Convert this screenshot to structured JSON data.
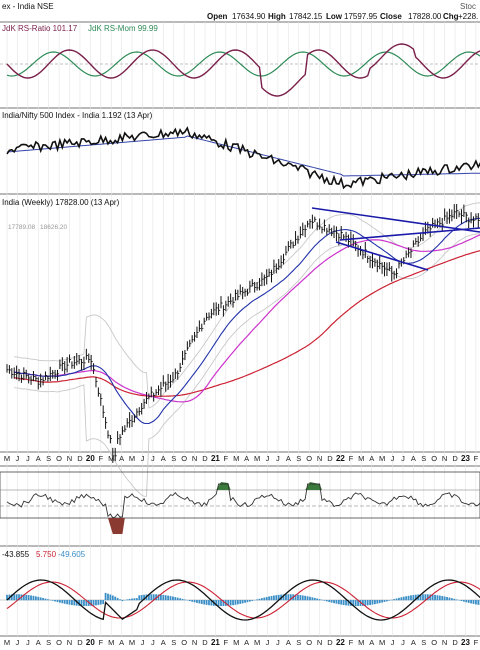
{
  "header": {
    "ticker_title": "ex - India NSE",
    "ohlc": {
      "open_label": "Open",
      "open_value": "17634.90",
      "high_label": "High",
      "high_value": "17842.15",
      "low_label": "Low",
      "low_value": "17597.95",
      "close_label": "Close",
      "close_value": "17828.00",
      "chg_label": "Chg",
      "chg_value": "+228."
    },
    "brand": "Stoc"
  },
  "panels": {
    "rrg": {
      "label_ratio": "JdK RS-Ratio 101.17",
      "label_mom": "JdK RS-Mom 99.99"
    },
    "relative": {
      "label": "India/Nifty 500 Index - India 1.192 (13 Apr)"
    },
    "price": {
      "label": "India (Weekly) 17828.00 (13 Apr)",
      "bb_label_a": "17789.08",
      "bb_label_b": "18626.20"
    },
    "macd": {
      "label_a": "-43.855",
      "label_b": "5.750",
      "label_c": "-49.605"
    }
  },
  "colors": {
    "rs_ratio": "#7a1f4a",
    "rs_mom": "#2e8b57",
    "rs_line": "#111111",
    "rs_ma": "#3344aa",
    "price_bar": "#111111",
    "ma_blue": "#2233aa",
    "ma_magenta": "#cc33cc",
    "ma_red": "#cc2233",
    "bb": "#c8c8c8",
    "trend": "#1a1aaa",
    "green_fill": "#3a7a3a",
    "red_fill": "#8a3a30",
    "hist": "#3b8fc7",
    "macd": "#111111",
    "signal": "#cc2233"
  },
  "chart_data": {
    "type": "line",
    "x_axis_ticks": [
      "M",
      "J",
      "J",
      "A",
      "S",
      "O",
      "N",
      "D",
      "20",
      "F",
      "M",
      "A",
      "M",
      "J",
      "J",
      "A",
      "S",
      "O",
      "N",
      "D",
      "21",
      "F",
      "M",
      "A",
      "M",
      "J",
      "J",
      "A",
      "S",
      "O",
      "N",
      "D",
      "22",
      "F",
      "M",
      "A",
      "M",
      "J",
      "J",
      "A",
      "S",
      "O",
      "N",
      "D",
      "23",
      "F"
    ],
    "bold_ticks": [
      "20",
      "21",
      "22",
      "23"
    ],
    "price_series_weekly_close_approx": [
      {
        "x": "2019-05",
        "y": 11500
      },
      {
        "x": "2019-08",
        "y": 11000
      },
      {
        "x": "2019-11",
        "y": 11800
      },
      {
        "x": "2020-01",
        "y": 12000
      },
      {
        "x": "2020-03",
        "y": 8000
      },
      {
        "x": "2020-06",
        "y": 10000
      },
      {
        "x": "2020-09",
        "y": 11200
      },
      {
        "x": "2020-12",
        "y": 13900
      },
      {
        "x": "2021-03",
        "y": 14800
      },
      {
        "x": "2021-06",
        "y": 15700
      },
      {
        "x": "2021-10",
        "y": 18300
      },
      {
        "x": "2022-01",
        "y": 17600
      },
      {
        "x": "2022-06",
        "y": 15800
      },
      {
        "x": "2022-09",
        "y": 17700
      },
      {
        "x": "2022-12",
        "y": 18600
      },
      {
        "x": "2023-04",
        "y": 17828
      }
    ],
    "last_close": 17828.0
  }
}
